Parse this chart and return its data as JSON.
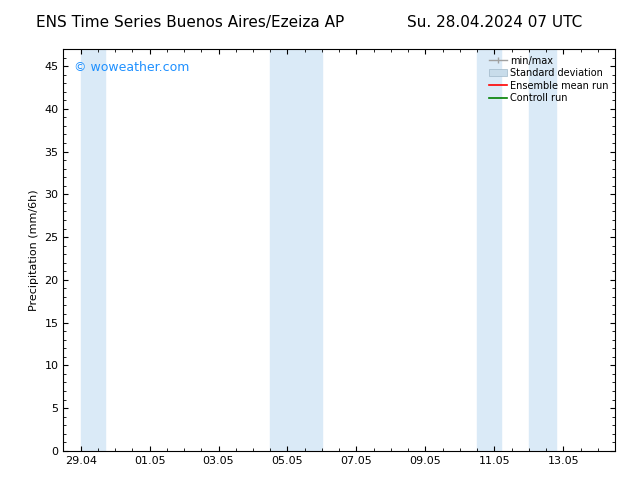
{
  "title_left": "ENS Time Series Buenos Aires/Ezeiza AP",
  "title_right": "Su. 28.04.2024 07 UTC",
  "ylabel": "Precipitation (mm/6h)",
  "background_color": "#ffffff",
  "plot_bg_color": "#ffffff",
  "y_min": 0,
  "y_max": 47,
  "yticks": [
    0,
    5,
    10,
    15,
    20,
    25,
    30,
    35,
    40,
    45
  ],
  "xtick_labels": [
    "29.04",
    "01.05",
    "03.05",
    "05.05",
    "07.05",
    "09.05",
    "11.05",
    "13.05"
  ],
  "xtick_positions": [
    0,
    2,
    4,
    6,
    8,
    10,
    12,
    14
  ],
  "x_min": -0.5,
  "x_max": 15.5,
  "shaded_bands": [
    [
      0.0,
      0.7
    ],
    [
      5.5,
      7.0
    ],
    [
      11.5,
      12.2
    ],
    [
      13.0,
      13.8
    ]
  ],
  "band_color": "#daeaf7",
  "legend_items": [
    {
      "label": "min/max",
      "color": "#b0b0b0"
    },
    {
      "label": "Standard deviation",
      "color": "#c8dcea"
    },
    {
      "label": "Ensemble mean run",
      "color": "#ff0000"
    },
    {
      "label": "Controll run",
      "color": "#008000"
    }
  ],
  "watermark_text": "© woweather.com",
  "watermark_color": "#1e90ff",
  "watermark_fontsize": 9,
  "title_fontsize": 11,
  "axis_fontsize": 8,
  "ylabel_fontsize": 8,
  "legend_fontsize": 7
}
